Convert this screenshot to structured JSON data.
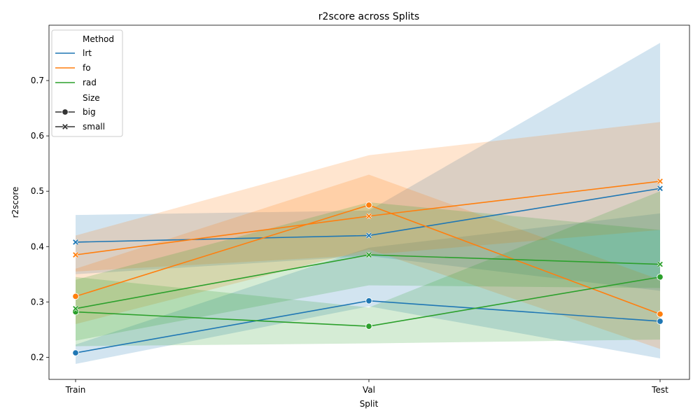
{
  "chart_data": {
    "type": "line",
    "title": "r2score across Splits",
    "xlabel": "Split",
    "ylabel": "r2score",
    "categories": [
      "Train",
      "Val",
      "Test"
    ],
    "ylim": [
      0.16,
      0.8
    ],
    "yticks": [
      0.2,
      0.3,
      0.4,
      0.5,
      0.6,
      0.7
    ],
    "yticklabels": [
      "0.2",
      "0.3",
      "0.4",
      "0.5",
      "0.6",
      "0.7"
    ],
    "grid": false,
    "legend_position": "top-left",
    "legend": {
      "hue_title": "Method",
      "hue_entries": [
        {
          "name": "lrt",
          "color": "#1f77b4"
        },
        {
          "name": "fo",
          "color": "#ff7f0e"
        },
        {
          "name": "rad",
          "color": "#2ca02c"
        }
      ],
      "style_title": "Size",
      "style_entries": [
        {
          "name": "big",
          "marker": "circle"
        },
        {
          "name": "small",
          "marker": "x"
        }
      ]
    },
    "series": [
      {
        "method": "lrt",
        "size": "big",
        "color": "#1f77b4",
        "marker": "circle",
        "values": [
          0.208,
          0.302,
          0.265
        ],
        "ci_low": [
          0.188,
          0.292,
          0.198
        ],
        "ci_high": [
          0.223,
          0.398,
          0.46
        ]
      },
      {
        "method": "lrt",
        "size": "small",
        "color": "#1f77b4",
        "marker": "x",
        "values": [
          0.408,
          0.42,
          0.505
        ],
        "ci_low": [
          0.35,
          0.383,
          0.32
        ],
        "ci_high": [
          0.457,
          0.465,
          0.768
        ]
      },
      {
        "method": "fo",
        "size": "big",
        "color": "#ff7f0e",
        "marker": "circle",
        "values": [
          0.31,
          0.475,
          0.278
        ],
        "ci_low": [
          0.26,
          0.395,
          0.215
        ],
        "ci_high": [
          0.36,
          0.53,
          0.34
        ]
      },
      {
        "method": "fo",
        "size": "small",
        "color": "#ff7f0e",
        "marker": "x",
        "values": [
          0.385,
          0.455,
          0.518
        ],
        "ci_low": [
          0.355,
          0.385,
          0.43
        ],
        "ci_high": [
          0.42,
          0.565,
          0.625
        ]
      },
      {
        "method": "rad",
        "size": "big",
        "color": "#2ca02c",
        "marker": "circle",
        "values": [
          0.282,
          0.256,
          0.345
        ],
        "ci_low": [
          0.22,
          0.225,
          0.232
        ],
        "ci_high": [
          0.345,
          0.29,
          0.5
        ]
      },
      {
        "method": "rad",
        "size": "small",
        "color": "#2ca02c",
        "marker": "x",
        "values": [
          0.288,
          0.385,
          0.368
        ],
        "ci_low": [
          0.23,
          0.33,
          0.325
        ],
        "ci_high": [
          0.34,
          0.48,
          0.43
        ]
      }
    ]
  }
}
